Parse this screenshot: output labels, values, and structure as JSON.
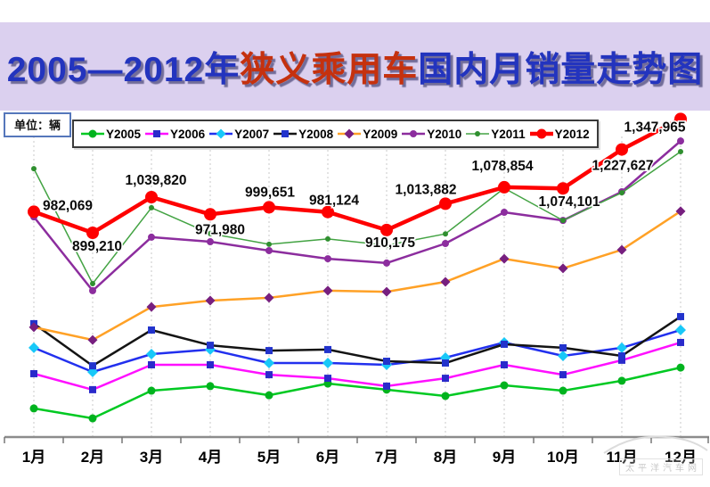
{
  "title": {
    "part1": "2005—2012年",
    "part2": "狭义乘用车",
    "part3": "国内月销量走势图"
  },
  "unit_label": "单位：辆",
  "watermark": "太平洋汽车网",
  "chart_data": {
    "type": "line",
    "unit": "辆",
    "categories": [
      "1月",
      "2月",
      "3月",
      "4月",
      "5月",
      "6月",
      "7月",
      "8月",
      "9月",
      "10月",
      "11月",
      "12月"
    ],
    "ylim": [
      94000,
      1330000
    ],
    "grid": "vertical-dashed",
    "legend_position": "top",
    "series": [
      {
        "name": "Y2005",
        "line_color": "#00C922",
        "marker": "circle",
        "marker_color": "#00B31E",
        "line_width": 2.5,
        "marker_size": 4.5,
        "values": [
          207000,
          168000,
          277000,
          295000,
          259000,
          305000,
          281000,
          256000,
          298000,
          277000,
          316000,
          368000
        ]
      },
      {
        "name": "Y2006",
        "line_color": "#FF10FF",
        "marker": "square",
        "marker_color": "#2A2ACB",
        "line_width": 2.5,
        "marker_size": 4,
        "values": [
          344000,
          281000,
          379000,
          379000,
          340000,
          326000,
          295000,
          326000,
          379000,
          340000,
          397000,
          467000
        ]
      },
      {
        "name": "Y2007",
        "line_color": "#2230EE",
        "marker": "diamond",
        "marker_color": "#18C8F8",
        "line_width": 2.5,
        "marker_size": 6,
        "values": [
          446000,
          351000,
          421000,
          439000,
          386000,
          386000,
          379000,
          407000,
          467000,
          414000,
          446000,
          516000
        ]
      },
      {
        "name": "Y2008",
        "line_color": "#141414",
        "marker": "square",
        "marker_color": "#2233CC",
        "line_width": 2.5,
        "marker_size": 4,
        "values": [
          541000,
          375000,
          516000,
          456000,
          435000,
          439000,
          393000,
          386000,
          460000,
          446000,
          414000,
          569000
        ]
      },
      {
        "name": "Y2009",
        "line_color": "#FFA126",
        "marker": "diamond",
        "marker_color": "#771F7F",
        "line_width": 2.5,
        "marker_size": 5.5,
        "values": [
          527000,
          477000,
          607000,
          632000,
          643000,
          671000,
          667000,
          706000,
          797000,
          759000,
          832000,
          984000
        ]
      },
      {
        "name": "Y2010",
        "line_color": "#8C2D9E",
        "marker": "circle",
        "marker_color": "#8C2D9E",
        "line_width": 2.5,
        "marker_size": 4,
        "values": [
          962000,
          671000,
          882000,
          864000,
          829000,
          797000,
          780000,
          857000,
          980000,
          948000,
          1061000,
          1261000
        ]
      },
      {
        "name": "Y2011",
        "line_color": "#43A343",
        "marker": "circle",
        "marker_color": "#2F8F2F",
        "line_width": 1.5,
        "marker_size": 3,
        "values": [
          1152000,
          699000,
          998000,
          896000,
          854000,
          875000,
          850000,
          895000,
          1075000,
          948000,
          1057000,
          1219000
        ]
      },
      {
        "name": "Y2012",
        "line_color": "#FE0000",
        "marker": "circle",
        "marker_color": "#FE0000",
        "line_width": 4.5,
        "marker_size": 7,
        "values": [
          982069,
          899210,
          1039820,
          971980,
          999651,
          981124,
          910175,
          1013882,
          1078854,
          1074101,
          1227627,
          1347965
        ],
        "data_labels": [
          "982,069",
          "899,210",
          "1,039,820",
          "971,980",
          "999,651",
          "981,124",
          "910,175",
          "1,013,882",
          "1,078,854",
          "1,074,101",
          "1,227,627",
          "1,347,965"
        ]
      }
    ]
  }
}
